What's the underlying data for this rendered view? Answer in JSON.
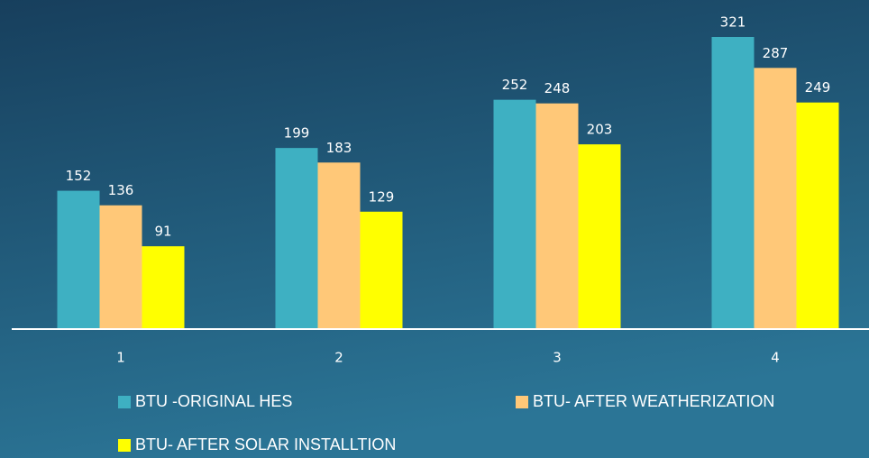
{
  "chart_data": {
    "type": "bar",
    "categories": [
      "1",
      "2",
      "3",
      "4"
    ],
    "series": [
      {
        "name": "BTU -ORIGINAL HES",
        "color": "#3eb0c2",
        "values": [
          152,
          199,
          252,
          321
        ]
      },
      {
        "name": "BTU- AFTER WEATHERIZATION",
        "color": "#ffc878",
        "values": [
          136,
          183,
          248,
          287
        ]
      },
      {
        "name": "BTU- AFTER SOLAR INSTALLTION",
        "color": "#ffff00",
        "values": [
          91,
          129,
          203,
          249
        ]
      }
    ],
    "legend": "bottom"
  }
}
